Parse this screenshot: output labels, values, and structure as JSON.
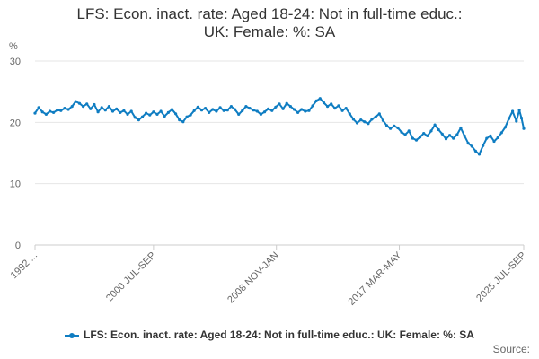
{
  "title_line1": "LFS: Econ. inact. rate: Aged 18-24: Not in full-time educ.:",
  "title_line2": "UK: Female: %: SA",
  "source_label": "Source:",
  "colors": {
    "series": "#0f7dc2",
    "grid": "#e6e6e6",
    "axis": "#cccccc",
    "text": "#666666"
  },
  "chart_data": {
    "type": "line",
    "ylabel": "%",
    "ylim": [
      0,
      30
    ],
    "yticks": [
      0,
      10,
      20,
      30
    ],
    "xlim": [
      1992.5,
      2025.5
    ],
    "xticks": [
      {
        "value": 1992.5,
        "label": "1992 ..."
      },
      {
        "value": 2000.5,
        "label": "2000 JUL-SEP"
      },
      {
        "value": 2008.8,
        "label": "2008 NOV-JAN"
      },
      {
        "value": 2017.1,
        "label": "2017 MAR-MAY"
      },
      {
        "value": 2025.5,
        "label": "2025 JUL-SEP"
      }
    ],
    "grid": true,
    "legend_position": "bottom",
    "series": [
      {
        "name": "LFS: Econ. inact. rate: Aged 18-24: Not in full-time educ.: UK: Female: %: SA",
        "color": "#0f7dc2",
        "points": [
          [
            1992.5,
            21.5
          ],
          [
            1992.75,
            22.4
          ],
          [
            1993.0,
            21.7
          ],
          [
            1993.25,
            21.3
          ],
          [
            1993.5,
            21.8
          ],
          [
            1993.75,
            21.6
          ],
          [
            1994.0,
            22.0
          ],
          [
            1994.25,
            21.9
          ],
          [
            1994.5,
            22.3
          ],
          [
            1994.75,
            22.1
          ],
          [
            1995.0,
            22.6
          ],
          [
            1995.25,
            23.4
          ],
          [
            1995.5,
            23.1
          ],
          [
            1995.75,
            22.6
          ],
          [
            1996.0,
            23.0
          ],
          [
            1996.25,
            22.2
          ],
          [
            1996.5,
            22.9
          ],
          [
            1996.75,
            21.7
          ],
          [
            1997.0,
            22.4
          ],
          [
            1997.25,
            22.0
          ],
          [
            1997.5,
            22.6
          ],
          [
            1997.75,
            21.8
          ],
          [
            1998.0,
            22.2
          ],
          [
            1998.25,
            21.6
          ],
          [
            1998.5,
            21.9
          ],
          [
            1998.75,
            21.3
          ],
          [
            1999.0,
            21.8
          ],
          [
            1999.25,
            20.8
          ],
          [
            1999.5,
            20.4
          ],
          [
            1999.75,
            20.9
          ],
          [
            2000.0,
            21.5
          ],
          [
            2000.25,
            21.2
          ],
          [
            2000.5,
            21.7
          ],
          [
            2000.75,
            21.3
          ],
          [
            2001.0,
            21.8
          ],
          [
            2001.25,
            21.0
          ],
          [
            2001.5,
            21.6
          ],
          [
            2001.75,
            22.1
          ],
          [
            2002.0,
            21.4
          ],
          [
            2002.25,
            20.4
          ],
          [
            2002.5,
            20.1
          ],
          [
            2002.75,
            20.9
          ],
          [
            2003.0,
            21.2
          ],
          [
            2003.25,
            21.9
          ],
          [
            2003.5,
            22.5
          ],
          [
            2003.75,
            22.0
          ],
          [
            2004.0,
            22.3
          ],
          [
            2004.25,
            21.6
          ],
          [
            2004.5,
            22.1
          ],
          [
            2004.75,
            21.8
          ],
          [
            2005.0,
            22.4
          ],
          [
            2005.25,
            21.9
          ],
          [
            2005.5,
            22.0
          ],
          [
            2005.75,
            22.6
          ],
          [
            2006.0,
            22.1
          ],
          [
            2006.25,
            21.3
          ],
          [
            2006.5,
            21.9
          ],
          [
            2006.75,
            22.6
          ],
          [
            2007.0,
            22.3
          ],
          [
            2007.25,
            22.0
          ],
          [
            2007.5,
            21.8
          ],
          [
            2007.75,
            21.3
          ],
          [
            2008.0,
            21.7
          ],
          [
            2008.25,
            22.2
          ],
          [
            2008.5,
            21.9
          ],
          [
            2008.75,
            22.5
          ],
          [
            2009.0,
            23.0
          ],
          [
            2009.25,
            22.2
          ],
          [
            2009.5,
            23.1
          ],
          [
            2009.75,
            22.6
          ],
          [
            2010.0,
            22.1
          ],
          [
            2010.25,
            21.6
          ],
          [
            2010.5,
            22.1
          ],
          [
            2010.75,
            21.8
          ],
          [
            2011.0,
            21.9
          ],
          [
            2011.25,
            22.7
          ],
          [
            2011.5,
            23.5
          ],
          [
            2011.75,
            23.9
          ],
          [
            2012.0,
            23.2
          ],
          [
            2012.25,
            22.6
          ],
          [
            2012.5,
            23.0
          ],
          [
            2012.75,
            22.3
          ],
          [
            2013.0,
            22.7
          ],
          [
            2013.25,
            21.9
          ],
          [
            2013.5,
            22.3
          ],
          [
            2013.75,
            21.4
          ],
          [
            2014.0,
            20.5
          ],
          [
            2014.25,
            19.9
          ],
          [
            2014.5,
            20.4
          ],
          [
            2014.75,
            20.1
          ],
          [
            2015.0,
            19.8
          ],
          [
            2015.25,
            20.5
          ],
          [
            2015.5,
            20.9
          ],
          [
            2015.75,
            21.4
          ],
          [
            2016.0,
            20.3
          ],
          [
            2016.25,
            19.5
          ],
          [
            2016.5,
            19.0
          ],
          [
            2016.75,
            19.4
          ],
          [
            2017.0,
            19.1
          ],
          [
            2017.25,
            18.4
          ],
          [
            2017.5,
            18.0
          ],
          [
            2017.75,
            18.6
          ],
          [
            2018.0,
            17.4
          ],
          [
            2018.25,
            17.1
          ],
          [
            2018.5,
            17.6
          ],
          [
            2018.75,
            18.2
          ],
          [
            2019.0,
            17.8
          ],
          [
            2019.25,
            18.6
          ],
          [
            2019.5,
            19.6
          ],
          [
            2019.75,
            18.8
          ],
          [
            2020.0,
            18.1
          ],
          [
            2020.25,
            17.3
          ],
          [
            2020.5,
            17.9
          ],
          [
            2020.75,
            17.4
          ],
          [
            2021.0,
            18.0
          ],
          [
            2021.25,
            19.1
          ],
          [
            2021.5,
            17.8
          ],
          [
            2021.75,
            16.6
          ],
          [
            2022.0,
            16.1
          ],
          [
            2022.25,
            15.3
          ],
          [
            2022.5,
            14.8
          ],
          [
            2022.75,
            16.2
          ],
          [
            2023.0,
            17.4
          ],
          [
            2023.25,
            17.8
          ],
          [
            2023.5,
            16.9
          ],
          [
            2023.75,
            17.5
          ],
          [
            2024.0,
            18.3
          ],
          [
            2024.25,
            19.2
          ],
          [
            2024.5,
            20.6
          ],
          [
            2024.75,
            21.8
          ],
          [
            2025.0,
            20.2
          ],
          [
            2025.2,
            22.0
          ],
          [
            2025.35,
            20.7
          ],
          [
            2025.5,
            19.0
          ]
        ]
      }
    ]
  }
}
